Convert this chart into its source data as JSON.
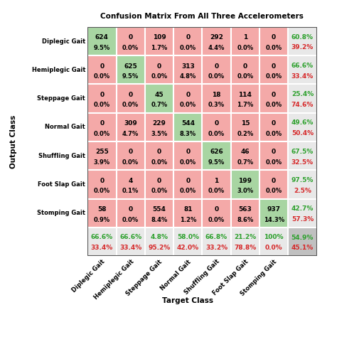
{
  "title": "Confusion Matrix From All Three Accelerometers",
  "classes": [
    "Diplegic Gait",
    "Hemiplegic Gait",
    "Steppage Gait",
    "Normal Gait",
    "Shuffling Gait",
    "Foot Slap Gait",
    "Stomping Gait"
  ],
  "matrix": [
    [
      624,
      0,
      109,
      0,
      292,
      1,
      0
    ],
    [
      0,
      625,
      0,
      313,
      0,
      0,
      0
    ],
    [
      0,
      0,
      45,
      0,
      18,
      114,
      0
    ],
    [
      0,
      309,
      229,
      544,
      0,
      15,
      0
    ],
    [
      255,
      0,
      0,
      0,
      626,
      46,
      0
    ],
    [
      0,
      4,
      0,
      0,
      1,
      199,
      0
    ],
    [
      58,
      0,
      554,
      81,
      0,
      563,
      937
    ]
  ],
  "cell_pct": [
    [
      "9.5%",
      "0.0%",
      "1.7%",
      "0.0%",
      "4.4%",
      "0.0%",
      "0.0%"
    ],
    [
      "0.0%",
      "9.5%",
      "0.0%",
      "4.8%",
      "0.0%",
      "0.0%",
      "0.0%"
    ],
    [
      "0.0%",
      "0.0%",
      "0.7%",
      "0.0%",
      "0.3%",
      "1.7%",
      "0.0%"
    ],
    [
      "0.0%",
      "4.7%",
      "3.5%",
      "8.3%",
      "0.0%",
      "0.2%",
      "0.0%"
    ],
    [
      "3.9%",
      "0.0%",
      "0.0%",
      "0.0%",
      "9.5%",
      "0.7%",
      "0.0%"
    ],
    [
      "0.0%",
      "0.1%",
      "0.0%",
      "0.0%",
      "0.0%",
      "3.0%",
      "0.0%"
    ],
    [
      "0.9%",
      "0.0%",
      "8.4%",
      "1.2%",
      "0.0%",
      "8.6%",
      "14.3%"
    ]
  ],
  "row_green": [
    "60.8%",
    "66.6%",
    "25.4%",
    "49.6%",
    "67.5%",
    "97.5%",
    "42.7%"
  ],
  "row_red": [
    "39.2%",
    "33.4%",
    "74.6%",
    "50.4%",
    "32.5%",
    "2.5%",
    "57.3%"
  ],
  "col_green": [
    "66.6%",
    "66.6%",
    "4.8%",
    "58.0%",
    "66.8%",
    "21.2%",
    "100%"
  ],
  "col_red": [
    "33.4%",
    "33.4%",
    "95.2%",
    "42.0%",
    "33.2%",
    "78.8%",
    "0.0%"
  ],
  "bottom_right_green": "54.9%",
  "bottom_right_red": "45.1%",
  "diag_color": "#a8d5a2",
  "offdiag_color": "#f4a9a8",
  "row_summary_bg": "#e8e8e8",
  "col_summary_bg": "#e8e8e8",
  "bottom_right_bg": "#c0c0c0",
  "green_text": "#2ca02c",
  "red_text": "#d62728",
  "xlabel": "Target Class",
  "ylabel": "Output Class",
  "title_fontsize": 7.5,
  "label_fontsize": 6.0,
  "cell_val_fontsize": 6.5,
  "cell_pct_fontsize": 6.0,
  "summary_fontsize": 6.5,
  "axis_title_fontsize": 7.5,
  "xticklabel_fontsize": 6.0,
  "yticklabel_fontsize": 6.0
}
